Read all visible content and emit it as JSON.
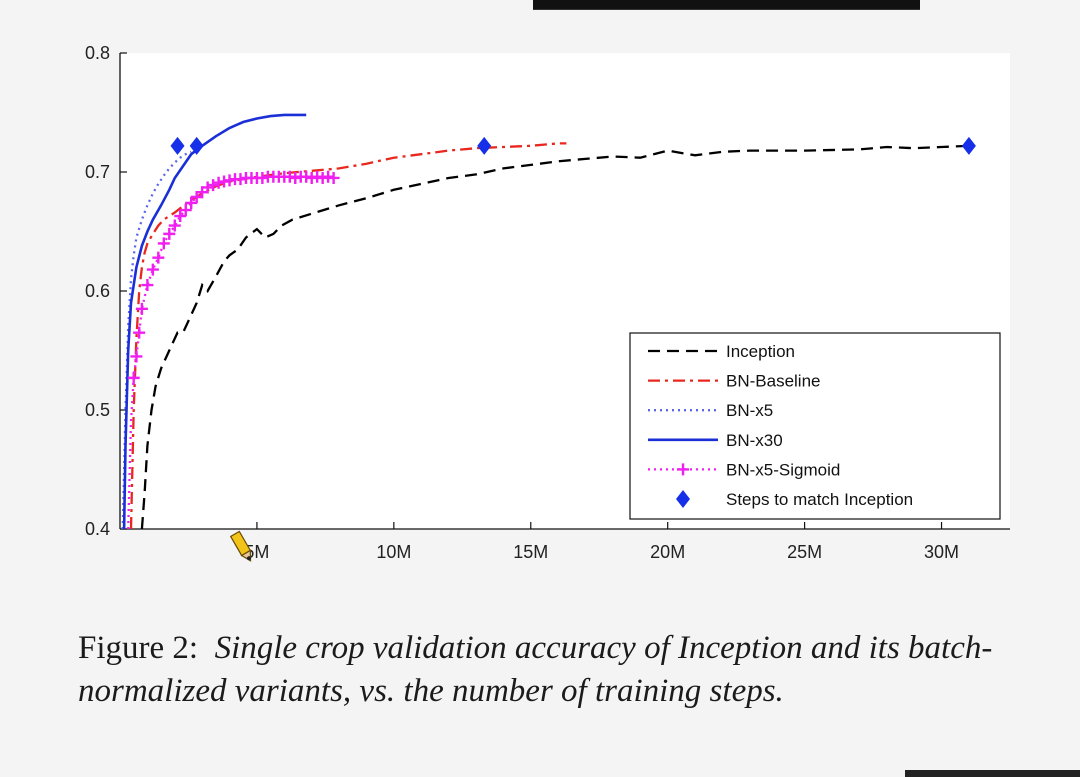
{
  "caption": {
    "label": "Figure 2:",
    "text": "Single crop validation accuracy of Inception and its batch-normalized variants, vs. the number of training steps."
  },
  "chart_data": {
    "type": "line",
    "title": "",
    "xlabel": "",
    "ylabel": "",
    "xlim": [
      0,
      32.5
    ],
    "ylim": [
      0.4,
      0.8
    ],
    "x_ticks": [
      {
        "v": 5,
        "label": "5M"
      },
      {
        "v": 10,
        "label": "10M"
      },
      {
        "v": 15,
        "label": "15M"
      },
      {
        "v": 20,
        "label": "20M"
      },
      {
        "v": 25,
        "label": "25M"
      },
      {
        "v": 30,
        "label": "30M"
      }
    ],
    "y_ticks": [
      {
        "v": 0.4,
        "label": "0.4"
      },
      {
        "v": 0.5,
        "label": "0.5"
      },
      {
        "v": 0.6,
        "label": "0.6"
      },
      {
        "v": 0.7,
        "label": "0.7"
      },
      {
        "v": 0.8,
        "label": "0.8"
      }
    ],
    "grid": false,
    "legend_position": "bottom-right",
    "series": [
      {
        "name": "Inception",
        "color": "#000000",
        "style": "dashed",
        "x": [
          0.8,
          0.9,
          1.0,
          1.15,
          1.3,
          1.5,
          1.7,
          1.9,
          2.1,
          2.3,
          2.5,
          2.8,
          3.0,
          3.2,
          3.5,
          3.8,
          4.0,
          4.3,
          4.6,
          5.0,
          5.3,
          5.6,
          5.9,
          6.3,
          7.0,
          8.0,
          9.0,
          10.0,
          11.0,
          12.0,
          13.0,
          14.0,
          15.0,
          16.0,
          17.0,
          18.0,
          19.0,
          20.0,
          20.5,
          21.0,
          22.0,
          23.0,
          25.0,
          27.0,
          28.0,
          29.0,
          30.0,
          31.0
        ],
        "y": [
          0.4,
          0.43,
          0.47,
          0.5,
          0.52,
          0.535,
          0.545,
          0.555,
          0.565,
          0.565,
          0.575,
          0.59,
          0.605,
          0.6,
          0.612,
          0.625,
          0.63,
          0.635,
          0.645,
          0.652,
          0.645,
          0.648,
          0.655,
          0.66,
          0.665,
          0.672,
          0.678,
          0.685,
          0.69,
          0.695,
          0.698,
          0.703,
          0.706,
          0.709,
          0.711,
          0.713,
          0.712,
          0.718,
          0.716,
          0.714,
          0.717,
          0.718,
          0.718,
          0.719,
          0.721,
          0.72,
          0.721,
          0.722
        ]
      },
      {
        "name": "BN-Baseline",
        "color": "#e8281e",
        "style": "dashdot",
        "x": [
          0.4,
          0.5,
          0.6,
          0.7,
          0.8,
          0.9,
          1.0,
          1.2,
          1.4,
          1.6,
          1.8,
          2.0,
          2.5,
          3.0,
          3.5,
          4.0,
          5.0,
          6.0,
          7.0,
          8.0,
          9.0,
          10.0,
          11.0,
          12.0,
          13.0,
          14.0,
          15.0,
          16.0,
          16.3
        ],
        "y": [
          0.4,
          0.5,
          0.56,
          0.6,
          0.62,
          0.632,
          0.64,
          0.648,
          0.655,
          0.66,
          0.663,
          0.666,
          0.675,
          0.682,
          0.688,
          0.692,
          0.696,
          0.699,
          0.701,
          0.703,
          0.707,
          0.712,
          0.715,
          0.718,
          0.72,
          0.721,
          0.722,
          0.724,
          0.724
        ]
      },
      {
        "name": "BN-x5",
        "color": "#5a66ee",
        "style": "dotted",
        "x": [
          0.1,
          0.2,
          0.3,
          0.4,
          0.5,
          0.6,
          0.8,
          1.0,
          1.2,
          1.4,
          1.6,
          1.8,
          2.0,
          2.2,
          2.4,
          2.6
        ],
        "y": [
          0.4,
          0.5,
          0.57,
          0.61,
          0.63,
          0.645,
          0.66,
          0.672,
          0.682,
          0.69,
          0.697,
          0.703,
          0.708,
          0.712,
          0.715,
          0.717
        ]
      },
      {
        "name": "BN-x30",
        "color": "#1b2fd6",
        "style": "solid",
        "x": [
          0.15,
          0.2,
          0.3,
          0.4,
          0.5,
          0.6,
          0.8,
          1.0,
          1.2,
          1.5,
          1.8,
          2.0,
          2.3,
          2.6,
          3.0,
          3.5,
          4.0,
          4.5,
          5.0,
          5.5,
          6.0,
          6.5,
          6.8
        ],
        "y": [
          0.4,
          0.47,
          0.55,
          0.59,
          0.605,
          0.62,
          0.638,
          0.65,
          0.66,
          0.672,
          0.685,
          0.695,
          0.705,
          0.715,
          0.722,
          0.73,
          0.737,
          0.742,
          0.745,
          0.747,
          0.748,
          0.748,
          0.748
        ]
      },
      {
        "name": "BN-x5-Sigmoid",
        "color": "#f01ef0",
        "style": "dotted-plus",
        "x": [
          0.3,
          0.4,
          0.5,
          0.6,
          0.7,
          0.8,
          1.0,
          1.2,
          1.4,
          1.6,
          1.8,
          2.0,
          2.2,
          2.4,
          2.6,
          2.8,
          3.0,
          3.2,
          3.4,
          3.6,
          3.8,
          4.0,
          4.2,
          4.4,
          4.6,
          4.8,
          5.0,
          5.2,
          5.4,
          5.6,
          5.8,
          6.0,
          6.2,
          6.4,
          6.6,
          6.8,
          7.0,
          7.2,
          7.4,
          7.6,
          7.8
        ],
        "y": [
          0.4,
          0.49,
          0.527,
          0.545,
          0.565,
          0.585,
          0.605,
          0.618,
          0.628,
          0.64,
          0.648,
          0.655,
          0.663,
          0.668,
          0.674,
          0.679,
          0.683,
          0.687,
          0.689,
          0.691,
          0.692,
          0.693,
          0.694,
          0.694,
          0.695,
          0.695,
          0.695,
          0.695,
          0.696,
          0.696,
          0.696,
          0.696,
          0.696,
          0.695,
          0.696,
          0.696,
          0.695,
          0.696,
          0.695,
          0.696,
          0.695
        ]
      },
      {
        "name": "Steps to match Inception",
        "color": "#1530e8",
        "style": "diamond",
        "x": [
          2.1,
          2.8,
          13.3,
          31.0
        ],
        "y": [
          0.722,
          0.722,
          0.722,
          0.722
        ]
      }
    ]
  }
}
